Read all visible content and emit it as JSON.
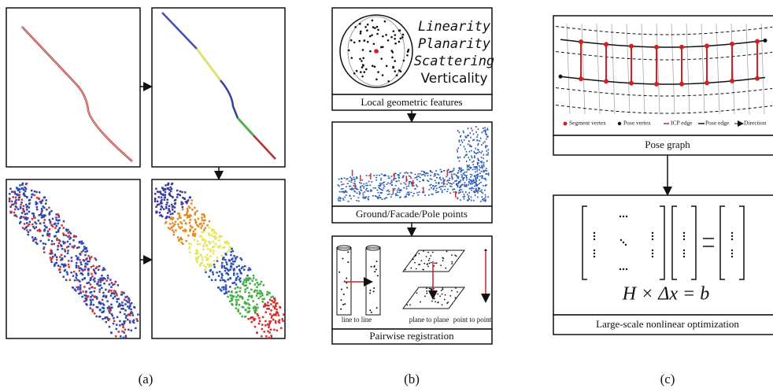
{
  "panel_labels": [
    "(a)",
    "(b)",
    "(c)"
  ],
  "b": {
    "features": [
      "Linearity",
      "Planarity",
      "Scattering",
      "Verticality"
    ],
    "captions": [
      "Local geometric features",
      "Ground/Facade/Pole points",
      "Pairwise registration"
    ],
    "registration_labels": [
      "line to line",
      "plane to plane",
      "point to point"
    ]
  },
  "c": {
    "legend": [
      "Segment vertex",
      "Pose vertex",
      "ICP edge",
      "Pose edge",
      "Direction"
    ],
    "captions": [
      "Pose graph",
      "Large-scale nonlinear optimization"
    ],
    "equation": "H × Δx = b"
  }
}
